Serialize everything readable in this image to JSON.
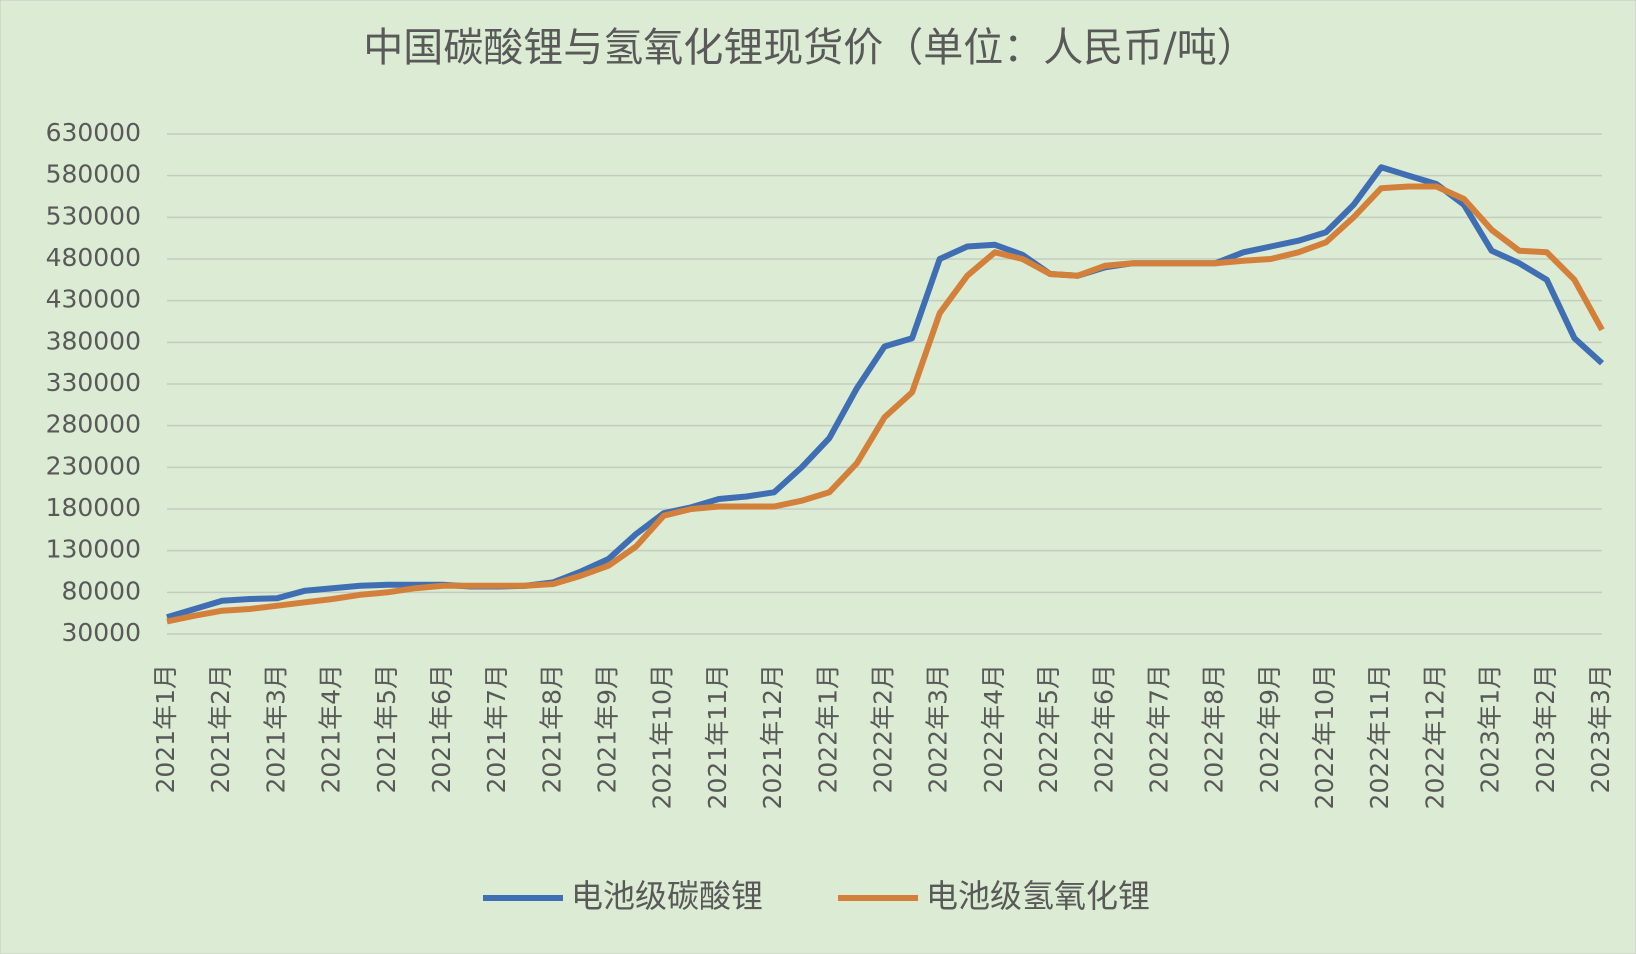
{
  "chart_data": {
    "type": "line",
    "title": "中国碳酸锂与氢氧化锂现货价（单位：人民币/吨）",
    "categories": [
      "2021年1月",
      null,
      "2021年2月",
      null,
      "2021年3月",
      null,
      "2021年4月",
      null,
      "2021年5月",
      null,
      "2021年6月",
      null,
      "2021年7月",
      null,
      "2021年8月",
      null,
      "2021年9月",
      null,
      "2021年10月",
      null,
      "2021年11月",
      null,
      "2021年12月",
      null,
      "2022年1月",
      null,
      "2022年2月",
      null,
      "2022年3月",
      null,
      "2022年4月",
      null,
      "2022年5月",
      null,
      "2022年6月",
      null,
      "2022年7月",
      null,
      "2022年8月",
      null,
      "2022年9月",
      null,
      "2022年10月",
      null,
      "2022年11月",
      null,
      "2022年12月",
      null,
      "2023年1月",
      null,
      "2023年2月",
      null,
      "2023年3月"
    ],
    "series": [
      {
        "name": "电池级碳酸锂",
        "color": "#3f6eb3",
        "values": [
          50000,
          60000,
          70000,
          72000,
          73000,
          82000,
          85000,
          88000,
          89000,
          89000,
          89000,
          87000,
          87000,
          88000,
          92000,
          105000,
          120000,
          150000,
          175000,
          182000,
          192000,
          195000,
          200000,
          230000,
          265000,
          325000,
          375000,
          385000,
          480000,
          495000,
          497000,
          485000,
          462000,
          460000,
          470000,
          475000,
          475000,
          475000,
          475000,
          488000,
          495000,
          502000,
          512000,
          545000,
          590000,
          580000,
          570000,
          545000,
          490000,
          475000,
          455000,
          385000,
          355000
        ]
      },
      {
        "name": "电池级氢氧化锂",
        "color": "#d3803b",
        "values": [
          45000,
          52000,
          58000,
          60000,
          64000,
          68000,
          72000,
          77000,
          80000,
          85000,
          88000,
          88000,
          88000,
          88000,
          90000,
          100000,
          112000,
          135000,
          172000,
          180000,
          183000,
          183000,
          183000,
          190000,
          200000,
          235000,
          290000,
          320000,
          415000,
          460000,
          488000,
          480000,
          462000,
          460000,
          472000,
          475000,
          475000,
          475000,
          475000,
          478000,
          480000,
          488000,
          500000,
          530000,
          565000,
          567000,
          567000,
          552000,
          515000,
          490000,
          488000,
          455000,
          395000
        ]
      }
    ],
    "ylim": [
      30000,
      630000
    ],
    "yticks": [
      30000,
      80000,
      130000,
      180000,
      230000,
      280000,
      330000,
      380000,
      430000,
      480000,
      530000,
      580000,
      630000
    ],
    "grid": true,
    "legend": "bottom"
  }
}
